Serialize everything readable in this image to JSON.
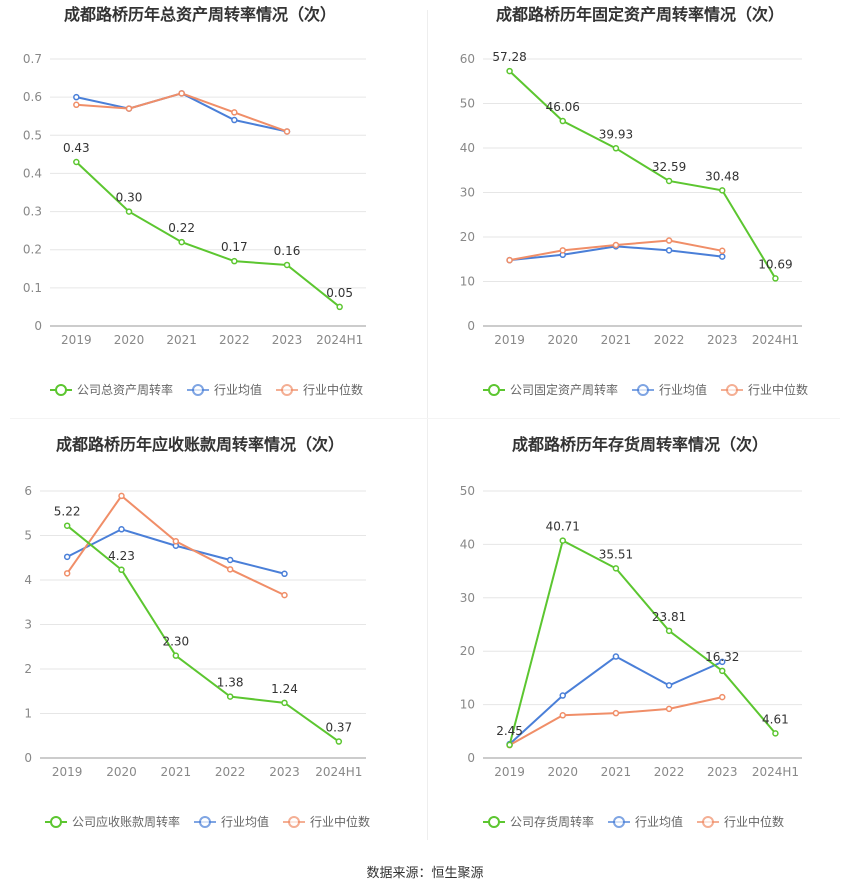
{
  "chart_data": [
    {
      "type": "line",
      "title": "成都路桥历年总资产周转率情况（次）",
      "categories": [
        "2019",
        "2020",
        "2021",
        "2022",
        "2023",
        "2024H1"
      ],
      "ylim": [
        0,
        0.7
      ],
      "yticks": [
        "0",
        "0.1",
        "0.2",
        "0.3",
        "0.4",
        "0.5",
        "0.6",
        "0.7"
      ],
      "grid": true,
      "legend_position": "bottom",
      "series": [
        {
          "name": "公司总资产周转率",
          "color": "#5cc630",
          "values": [
            0.43,
            0.3,
            0.22,
            0.17,
            0.16,
            0.05
          ],
          "labels": [
            "0.43",
            "0.30",
            "0.22",
            "0.17",
            "0.16",
            "0.05"
          ]
        },
        {
          "name": "行业均值",
          "color": "#4a7fd8",
          "values": [
            0.6,
            0.57,
            0.61,
            0.54,
            0.51,
            null
          ]
        },
        {
          "name": "行业中位数",
          "color": "#f08e68",
          "values": [
            0.58,
            0.57,
            0.61,
            0.56,
            0.51,
            null
          ]
        }
      ]
    },
    {
      "type": "line",
      "title": "成都路桥历年固定资产周转率情况（次）",
      "categories": [
        "2019",
        "2020",
        "2021",
        "2022",
        "2023",
        "2024H1"
      ],
      "ylim": [
        0,
        60
      ],
      "yticks": [
        "0",
        "10",
        "20",
        "30",
        "40",
        "50",
        "60"
      ],
      "grid": true,
      "legend_position": "bottom",
      "series": [
        {
          "name": "公司固定资产周转率",
          "color": "#5cc630",
          "values": [
            57.28,
            46.06,
            39.93,
            32.59,
            30.48,
            10.69
          ],
          "labels": [
            "57.28",
            "46.06",
            "39.93",
            "32.59",
            "30.48",
            "10.69"
          ]
        },
        {
          "name": "行业均值",
          "color": "#4a7fd8",
          "values": [
            14.8,
            16.0,
            17.9,
            17.0,
            15.6,
            null
          ]
        },
        {
          "name": "行业中位数",
          "color": "#f08e68",
          "values": [
            14.8,
            17.0,
            18.2,
            19.2,
            16.9,
            null
          ]
        }
      ]
    },
    {
      "type": "line",
      "title": "成都路桥历年应收账款周转率情况（次）",
      "categories": [
        "2019",
        "2020",
        "2021",
        "2022",
        "2023",
        "2024H1"
      ],
      "ylim": [
        0,
        6
      ],
      "yticks": [
        "0",
        "1",
        "2",
        "3",
        "4",
        "5",
        "6"
      ],
      "grid": true,
      "legend_position": "bottom",
      "series": [
        {
          "name": "公司应收账款周转率",
          "color": "#5cc630",
          "values": [
            5.22,
            4.23,
            2.3,
            1.38,
            1.24,
            0.37
          ],
          "labels": [
            "5.22",
            "4.23",
            "2.30",
            "1.38",
            "1.24",
            "0.37"
          ]
        },
        {
          "name": "行业均值",
          "color": "#4a7fd8",
          "values": [
            4.52,
            5.14,
            4.77,
            4.45,
            4.14,
            null
          ]
        },
        {
          "name": "行业中位数",
          "color": "#f08e68",
          "values": [
            4.15,
            5.89,
            4.87,
            4.24,
            3.66,
            null
          ]
        }
      ]
    },
    {
      "type": "line",
      "title": "成都路桥历年存货周转率情况（次）",
      "categories": [
        "2019",
        "2020",
        "2021",
        "2022",
        "2023",
        "2024H1"
      ],
      "ylim": [
        0,
        50
      ],
      "yticks": [
        "0",
        "10",
        "20",
        "30",
        "40",
        "50"
      ],
      "grid": true,
      "legend_position": "bottom",
      "series": [
        {
          "name": "公司存货周转率",
          "color": "#5cc630",
          "values": [
            2.45,
            40.71,
            35.51,
            23.81,
            16.32,
            4.61
          ],
          "labels": [
            "2.45",
            "40.71",
            "35.51",
            "23.81",
            "16.32",
            "4.61"
          ]
        },
        {
          "name": "行业均值",
          "color": "#4a7fd8",
          "values": [
            2.6,
            11.7,
            19.0,
            13.6,
            18.0,
            null
          ]
        },
        {
          "name": "行业中位数",
          "color": "#f08e68",
          "values": [
            2.4,
            8.0,
            8.4,
            9.2,
            11.4,
            null
          ]
        }
      ]
    }
  ],
  "footer": {
    "source": "数据来源：恒生聚源"
  }
}
